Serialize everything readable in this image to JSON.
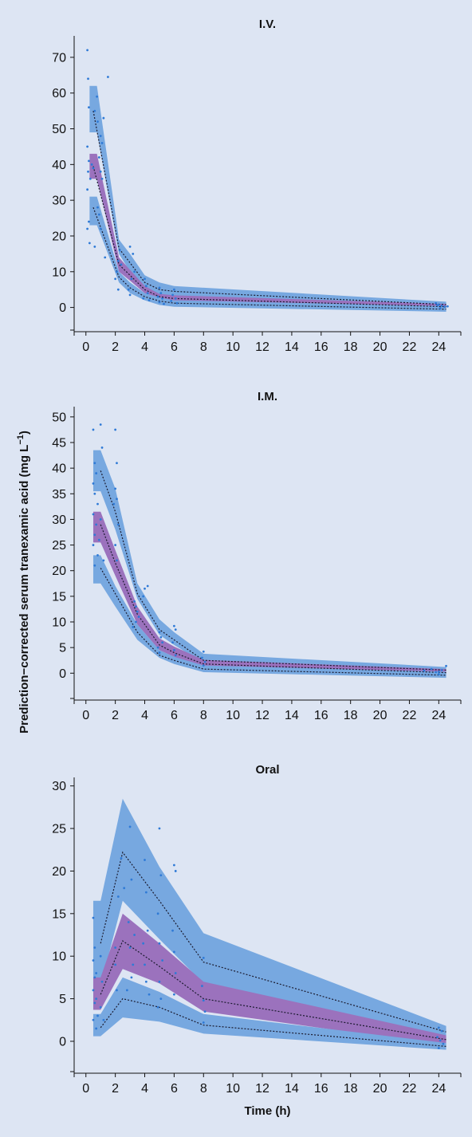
{
  "y_axis_title_main": "Prediction−corrected serum tranexamic acid (mg L",
  "y_axis_title_sup": "−1",
  "y_axis_title_close": ")",
  "colors": {
    "background": "#dde5f3",
    "outer_band": "#77a8e0",
    "median_band": "#9b72bd",
    "observed_points": "#2f7ad6",
    "percentile_lines": "#1a1a2e",
    "axis": "#111111"
  },
  "chart_data": [
    {
      "type": "scatter",
      "title": "I.V.",
      "xlabel": "",
      "ylabel": "Prediction−corrected serum tranexamic acid (mg L−1)",
      "xlim": [
        -0.8,
        25.5
      ],
      "ylim": [
        -5,
        76
      ],
      "x_ticks": [
        0,
        2,
        4,
        6,
        8,
        10,
        12,
        14,
        16,
        18,
        20,
        22,
        24
      ],
      "y_ticks": [
        0,
        10,
        20,
        30,
        40,
        50,
        60,
        70
      ],
      "bands": [
        {
          "name": "upper",
          "x0": 0.25,
          "x1": 0.75,
          "x": [
            0.25,
            0.75,
            2.25,
            3,
            4,
            5,
            6,
            24.5
          ],
          "lo": [
            49,
            49,
            15,
            10,
            5,
            3,
            2.5,
            -0.2
          ],
          "hi": [
            62,
            62,
            19,
            15,
            9,
            7,
            6,
            1.6
          ]
        },
        {
          "name": "median",
          "x0": 0.25,
          "x1": 0.75,
          "x": [
            0.25,
            0.75,
            2.25,
            3,
            4,
            5,
            6,
            24.5
          ],
          "lo": [
            36,
            36,
            10,
            7.5,
            4,
            2,
            1.5,
            -0.7
          ],
          "hi": [
            43,
            43,
            14,
            10.5,
            6,
            3.8,
            3.4,
            1.0
          ]
        },
        {
          "name": "lower",
          "x0": 0.25,
          "x1": 0.75,
          "x": [
            0.25,
            0.75,
            2.25,
            3,
            4,
            5,
            6,
            24.5
          ],
          "lo": [
            23,
            23,
            7,
            4,
            2,
            0.7,
            0.2,
            -1.2
          ],
          "hi": [
            31,
            31,
            10,
            7,
            4,
            2.8,
            2,
            0.4
          ]
        }
      ],
      "percentiles": [
        {
          "name": "p95",
          "x": [
            0.5,
            2.25,
            3,
            4,
            5,
            6,
            24.5
          ],
          "y": [
            55,
            16.5,
            12.5,
            7,
            5,
            4.5,
            0.8
          ]
        },
        {
          "name": "p50",
          "x": [
            0.5,
            2.25,
            3,
            4,
            5,
            6,
            24.5
          ],
          "y": [
            39.5,
            12,
            9,
            5,
            3,
            2.5,
            0.2
          ]
        },
        {
          "name": "p05",
          "x": [
            0.5,
            2.25,
            3,
            4,
            5,
            6,
            24.5
          ],
          "y": [
            28,
            8.5,
            5.5,
            3,
            1.8,
            1.2,
            -0.5
          ]
        }
      ],
      "observed": [
        [
          0.1,
          72
        ],
        [
          0.15,
          64
        ],
        [
          0.2,
          56
        ],
        [
          0.1,
          45
        ],
        [
          0.2,
          41
        ],
        [
          0.15,
          38
        ],
        [
          0.3,
          36
        ],
        [
          0.1,
          33
        ],
        [
          0.2,
          24
        ],
        [
          0.1,
          22
        ],
        [
          0.25,
          18
        ],
        [
          0.4,
          40
        ],
        [
          0.5,
          39
        ],
        [
          0.6,
          55
        ],
        [
          0.75,
          59
        ],
        [
          0.8,
          52
        ],
        [
          1.0,
          48
        ],
        [
          1.1,
          46
        ],
        [
          1.2,
          53
        ],
        [
          0.9,
          42
        ],
        [
          1.0,
          38
        ],
        [
          1.1,
          36
        ],
        [
          0.8,
          28
        ],
        [
          0.9,
          26
        ],
        [
          0.6,
          17
        ],
        [
          1.0,
          22
        ],
        [
          1.3,
          14
        ],
        [
          1.5,
          64.5
        ],
        [
          2.2,
          13
        ],
        [
          2.3,
          16
        ],
        [
          2.1,
          10
        ],
        [
          2.0,
          8
        ],
        [
          2.2,
          5
        ],
        [
          2.4,
          12
        ],
        [
          3.0,
          17
        ],
        [
          3.2,
          15
        ],
        [
          3.3,
          10
        ],
        [
          3.1,
          8
        ],
        [
          2.9,
          5
        ],
        [
          3.0,
          3.5
        ],
        [
          4.0,
          8
        ],
        [
          4.1,
          6
        ],
        [
          4.2,
          4
        ],
        [
          3.9,
          2.5
        ],
        [
          4.3,
          2
        ],
        [
          5.0,
          5.5
        ],
        [
          5.1,
          4
        ],
        [
          4.9,
          3
        ],
        [
          5.2,
          2.5
        ],
        [
          5.0,
          1.5
        ],
        [
          5.3,
          1
        ],
        [
          6.0,
          5
        ],
        [
          5.9,
          3.5
        ],
        [
          6.1,
          2.5
        ],
        [
          5.8,
          1.8
        ],
        [
          6.2,
          1.2
        ],
        [
          23.8,
          1.2
        ],
        [
          24.0,
          0.8
        ],
        [
          24.2,
          0.5
        ],
        [
          24.4,
          0.2
        ],
        [
          24.1,
          -0.2
        ],
        [
          23.9,
          0.6
        ],
        [
          24.6,
          0.3
        ]
      ]
    },
    {
      "type": "scatter",
      "title": "I.M.",
      "xlabel": "",
      "ylabel": "Prediction−corrected serum tranexamic acid (mg L−1)",
      "xlim": [
        -0.8,
        25.5
      ],
      "ylim": [
        -4,
        52
      ],
      "x_ticks": [
        0,
        2,
        4,
        6,
        8,
        10,
        12,
        14,
        16,
        18,
        20,
        22,
        24
      ],
      "y_ticks": [
        0,
        5,
        10,
        15,
        20,
        25,
        30,
        35,
        40,
        45,
        50
      ],
      "bands": [
        {
          "name": "upper",
          "x0": 0.5,
          "x1": 1.0,
          "x": [
            0.5,
            1.0,
            2.0,
            3.5,
            5.0,
            6.0,
            8.0,
            24.5
          ],
          "lo": [
            35.5,
            35.5,
            28,
            14.5,
            7.5,
            5.5,
            2.0,
            0.0
          ],
          "hi": [
            43.5,
            43.5,
            36,
            17.5,
            10.5,
            8.0,
            3.8,
            1.2
          ]
        },
        {
          "name": "median",
          "x0": 0.5,
          "x1": 1.0,
          "x": [
            0.5,
            1.0,
            2.0,
            3.5,
            5.0,
            6.0,
            8.0,
            24.5
          ],
          "lo": [
            25.5,
            25.5,
            19,
            9.5,
            4.5,
            3.2,
            1.0,
            -0.6
          ],
          "hi": [
            31.5,
            31.5,
            24,
            13.0,
            6.8,
            5.2,
            2.6,
            0.8
          ]
        },
        {
          "name": "lower",
          "x0": 0.5,
          "x1": 1.0,
          "x": [
            0.5,
            1.0,
            2.0,
            3.5,
            5.0,
            6.0,
            8.0,
            24.5
          ],
          "lo": [
            17.5,
            17.5,
            13,
            6.5,
            3.0,
            1.8,
            0.2,
            -0.9
          ],
          "hi": [
            23.0,
            23.0,
            17,
            9.5,
            4.5,
            3.2,
            1.5,
            0.3
          ]
        }
      ],
      "percentiles": [
        {
          "name": "p95",
          "x": [
            1.0,
            2.0,
            3.5,
            5.0,
            6.0,
            8.0,
            24.5
          ],
          "y": [
            39.5,
            31.5,
            15.5,
            8.5,
            6.5,
            2.5,
            0.6
          ]
        },
        {
          "name": "p50",
          "x": [
            1.0,
            2.0,
            3.5,
            5.0,
            6.0,
            8.0,
            24.5
          ],
          "y": [
            29,
            21.5,
            11.5,
            5.5,
            4.0,
            1.8,
            0.1
          ]
        },
        {
          "name": "p05",
          "x": [
            1.0,
            2.0,
            3.5,
            5.0,
            6.0,
            8.0,
            24.5
          ],
          "y": [
            20.5,
            15.5,
            8.0,
            3.5,
            2.5,
            0.8,
            -0.4
          ]
        }
      ],
      "observed": [
        [
          0.5,
          47.5
        ],
        [
          0.6,
          41
        ],
        [
          0.7,
          39
        ],
        [
          0.5,
          37
        ],
        [
          0.6,
          35
        ],
        [
          0.8,
          33
        ],
        [
          0.5,
          31
        ],
        [
          0.7,
          29
        ],
        [
          0.6,
          27
        ],
        [
          0.5,
          25
        ],
        [
          0.8,
          23
        ],
        [
          0.6,
          21
        ],
        [
          1.0,
          48.5
        ],
        [
          1.1,
          44
        ],
        [
          1.0,
          30
        ],
        [
          0.9,
          26
        ],
        [
          1.2,
          22
        ],
        [
          2.0,
          47.5
        ],
        [
          2.1,
          41
        ],
        [
          2.0,
          36
        ],
        [
          2.1,
          34
        ],
        [
          1.9,
          33
        ],
        [
          2.2,
          29
        ],
        [
          2.0,
          25
        ],
        [
          2.1,
          22
        ],
        [
          3.3,
          14
        ],
        [
          3.5,
          12
        ],
        [
          3.4,
          10
        ],
        [
          3.2,
          9
        ],
        [
          3.6,
          11
        ],
        [
          3.4,
          13
        ],
        [
          4.0,
          16.5
        ],
        [
          4.2,
          17
        ],
        [
          3.9,
          15
        ],
        [
          5.0,
          8
        ],
        [
          5.1,
          7
        ],
        [
          4.9,
          5
        ],
        [
          5.2,
          6
        ],
        [
          5.0,
          4
        ],
        [
          6.0,
          9.2
        ],
        [
          6.1,
          8.5
        ],
        [
          5.9,
          6
        ],
        [
          6.0,
          4.5
        ],
        [
          6.1,
          3.5
        ],
        [
          8.0,
          4.2
        ],
        [
          7.9,
          3
        ],
        [
          8.1,
          2.2
        ],
        [
          8.0,
          1.5
        ],
        [
          23.0,
          0.5
        ],
        [
          23.5,
          0.8
        ],
        [
          23.8,
          0.2
        ],
        [
          24.0,
          -0.2
        ],
        [
          24.2,
          0.6
        ],
        [
          24.5,
          1.4
        ],
        [
          24.0,
          0.3
        ]
      ]
    },
    {
      "type": "scatter",
      "title": "Oral",
      "xlabel": "Time (h)",
      "ylabel": "Prediction−corrected serum tranexamic acid (mg L−1)",
      "xlim": [
        -0.8,
        25.5
      ],
      "ylim": [
        -3,
        31
      ],
      "x_ticks": [
        0,
        2,
        4,
        6,
        8,
        10,
        12,
        14,
        16,
        18,
        20,
        22,
        24
      ],
      "y_ticks": [
        0,
        5,
        10,
        15,
        20,
        25,
        30
      ],
      "bands": [
        {
          "name": "upper",
          "x0": 0.5,
          "x1": 1.0,
          "x": [
            0.5,
            1.0,
            2.5,
            5.0,
            8.0,
            24.5
          ],
          "lo": [
            6.5,
            6.5,
            16.5,
            12.0,
            6.8,
            0.4
          ],
          "hi": [
            16.5,
            16.5,
            28.5,
            20.5,
            12.7,
            1.8
          ]
        },
        {
          "name": "median",
          "x0": 0.5,
          "x1": 1.0,
          "x": [
            0.5,
            1.0,
            2.5,
            5.0,
            8.0,
            24.5
          ],
          "lo": [
            3.7,
            3.7,
            8.5,
            6.8,
            3.5,
            -0.5
          ],
          "hi": [
            7.5,
            7.5,
            15.0,
            11.5,
            7.0,
            0.7
          ]
        },
        {
          "name": "lower",
          "x0": 0.5,
          "x1": 1.0,
          "x": [
            0.5,
            1.0,
            2.5,
            5.0,
            8.0,
            24.5
          ],
          "lo": [
            0.6,
            0.6,
            2.8,
            2.3,
            0.9,
            -1.0
          ],
          "hi": [
            3.2,
            3.2,
            7.5,
            5.8,
            3.2,
            -0.2
          ]
        }
      ],
      "percentiles": [
        {
          "name": "p95",
          "x": [
            1.0,
            2.5,
            5.0,
            8.0,
            24.5
          ],
          "y": [
            11.5,
            22.2,
            16.5,
            9.3,
            1.1
          ]
        },
        {
          "name": "p50",
          "x": [
            1.0,
            2.5,
            5.0,
            8.0,
            24.5
          ],
          "y": [
            5.5,
            11.8,
            8.8,
            5.0,
            0.2
          ]
        },
        {
          "name": "p05",
          "x": [
            1.0,
            2.5,
            5.0,
            8.0,
            24.5
          ],
          "y": [
            1.6,
            5.0,
            4.0,
            1.9,
            -0.6
          ]
        }
      ],
      "observed": [
        [
          0.5,
          14.5
        ],
        [
          0.6,
          11
        ],
        [
          0.5,
          9.5
        ],
        [
          0.7,
          8
        ],
        [
          0.6,
          7.5
        ],
        [
          0.5,
          6
        ],
        [
          0.7,
          5
        ],
        [
          0.6,
          4.5
        ],
        [
          0.8,
          3
        ],
        [
          0.5,
          2.5
        ],
        [
          0.7,
          1.5
        ],
        [
          1.0,
          10
        ],
        [
          1.1,
          7
        ],
        [
          1.0,
          4
        ],
        [
          1.2,
          2.5
        ],
        [
          2.0,
          11
        ],
        [
          2.2,
          17
        ],
        [
          2.0,
          9
        ],
        [
          2.1,
          6
        ],
        [
          2.4,
          21.5
        ],
        [
          2.6,
          18
        ],
        [
          3.0,
          25.2
        ],
        [
          3.1,
          19
        ],
        [
          2.9,
          14
        ],
        [
          3.0,
          11
        ],
        [
          3.2,
          9
        ],
        [
          3.1,
          7.5
        ],
        [
          2.8,
          6
        ],
        [
          3.3,
          12.5
        ],
        [
          4.0,
          21.3
        ],
        [
          4.1,
          17.5
        ],
        [
          4.2,
          13
        ],
        [
          3.9,
          11.5
        ],
        [
          4.0,
          9
        ],
        [
          4.1,
          7
        ],
        [
          4.3,
          5.5
        ],
        [
          5.0,
          25
        ],
        [
          5.1,
          19.5
        ],
        [
          4.9,
          15
        ],
        [
          5.0,
          11.5
        ],
        [
          5.2,
          9.5
        ],
        [
          5.0,
          7
        ],
        [
          5.1,
          5
        ],
        [
          4.9,
          4
        ],
        [
          6.0,
          20.7
        ],
        [
          6.1,
          20
        ],
        [
          5.9,
          13
        ],
        [
          6.0,
          10.5
        ],
        [
          6.1,
          8
        ],
        [
          6.0,
          5.5
        ],
        [
          8.0,
          9.8
        ],
        [
          7.9,
          6.5
        ],
        [
          8.0,
          4.8
        ],
        [
          8.1,
          3.5
        ],
        [
          8.0,
          2.2
        ],
        [
          24.0,
          1.6
        ],
        [
          24.2,
          1.2
        ],
        [
          23.9,
          0.5
        ],
        [
          24.1,
          0.1
        ],
        [
          24.3,
          -0.3
        ],
        [
          24.0,
          -0.8
        ]
      ]
    }
  ]
}
